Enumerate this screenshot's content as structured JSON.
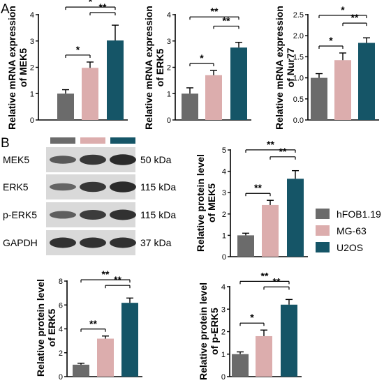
{
  "figure": {
    "panel_labels": [
      "A",
      "B"
    ],
    "legend": {
      "position": "right",
      "entries": [
        {
          "label": "hFOB1.19",
          "color": "#6b6b6b"
        },
        {
          "label": "MG-63",
          "color": "#dcadad"
        },
        {
          "label": "U2OS",
          "color": "#155567"
        }
      ]
    },
    "western_blot": {
      "group_colors": [
        "#6b6b6b",
        "#dcadad",
        "#155567"
      ],
      "rows": [
        {
          "protein": "MEK5",
          "mw": "50 kDa",
          "intensity": [
            0.55,
            0.85,
            0.95
          ]
        },
        {
          "protein": "ERK5",
          "mw": "115 kDa",
          "intensity": [
            0.45,
            0.85,
            0.95
          ]
        },
        {
          "protein": "p-ERK5",
          "mw": "115 kDa",
          "intensity": [
            0.5,
            0.8,
            0.9
          ]
        },
        {
          "protein": "GAPDH",
          "mw": "37 kDa",
          "intensity": [
            0.9,
            0.9,
            0.9
          ]
        }
      ]
    }
  },
  "chart_data": [
    {
      "type": "bar",
      "ylabel": [
        "Relative mRNA expression",
        "of MEK5"
      ],
      "categories": [
        "hFOB1.19",
        "MG-63",
        "U2OS"
      ],
      "values": [
        1.0,
        1.98,
        3.02
      ],
      "errors": [
        0.15,
        0.22,
        0.58
      ],
      "ylim": [
        0,
        4
      ],
      "yticks": [
        "0",
        "1",
        "2",
        "3",
        "4"
      ],
      "significance": [
        {
          "pair": [
            1,
            0
          ],
          "label": "*"
        },
        {
          "pair": [
            2,
            1
          ],
          "label": "**"
        },
        {
          "pair": [
            2,
            0
          ],
          "label": "*"
        }
      ]
    },
    {
      "type": "bar",
      "ylabel": [
        "Relative mRNA expression",
        "of ERK5"
      ],
      "categories": [
        "hFOB1.19",
        "MG-63",
        "U2OS"
      ],
      "values": [
        1.0,
        1.7,
        2.75
      ],
      "errors": [
        0.22,
        0.18,
        0.2
      ],
      "ylim": [
        0,
        4
      ],
      "yticks": [
        "0",
        "1",
        "2",
        "3",
        "4"
      ],
      "significance": [
        {
          "pair": [
            1,
            0
          ],
          "label": "*"
        },
        {
          "pair": [
            2,
            1
          ],
          "label": "**"
        },
        {
          "pair": [
            2,
            0
          ],
          "label": "**"
        }
      ]
    },
    {
      "type": "bar",
      "ylabel": [
        "Relative mRNA expression",
        "of Nur77"
      ],
      "categories": [
        "hFOB1.19",
        "MG-63",
        "U2OS"
      ],
      "values": [
        1.0,
        1.42,
        1.83
      ],
      "errors": [
        0.1,
        0.17,
        0.12
      ],
      "ylim": [
        0,
        2.5
      ],
      "yticks": [
        "0.0",
        "0.5",
        "1.0",
        "1.5",
        "2.0",
        "2.5"
      ],
      "significance": [
        {
          "pair": [
            1,
            0
          ],
          "label": "*"
        },
        {
          "pair": [
            2,
            1
          ],
          "label": "**"
        },
        {
          "pair": [
            2,
            0
          ],
          "label": "*"
        }
      ]
    },
    {
      "type": "bar",
      "ylabel": [
        "Relative protein level",
        "of MEK5"
      ],
      "categories": [
        "hFOB1.19",
        "MG-63",
        "U2OS"
      ],
      "values": [
        1.0,
        2.42,
        3.65
      ],
      "errors": [
        0.1,
        0.22,
        0.38
      ],
      "ylim": [
        0,
        5
      ],
      "yticks": [
        "0",
        "1",
        "2",
        "3",
        "4",
        "5"
      ],
      "significance": [
        {
          "pair": [
            1,
            0
          ],
          "label": "**"
        },
        {
          "pair": [
            2,
            1
          ],
          "label": "**"
        },
        {
          "pair": [
            2,
            0
          ],
          "label": "**"
        }
      ]
    },
    {
      "type": "bar",
      "ylabel": [
        "Relative protein level",
        "of ERK5"
      ],
      "categories": [
        "hFOB1.19",
        "MG-63",
        "U2OS"
      ],
      "values": [
        1.0,
        3.18,
        6.18
      ],
      "errors": [
        0.12,
        0.22,
        0.4
      ],
      "ylim": [
        0,
        8
      ],
      "yticks": [
        "0",
        "2",
        "4",
        "6",
        "8"
      ],
      "significance": [
        {
          "pair": [
            1,
            0
          ],
          "label": "**"
        },
        {
          "pair": [
            2,
            1
          ],
          "label": "**"
        },
        {
          "pair": [
            2,
            0
          ],
          "label": "**"
        }
      ]
    },
    {
      "type": "bar",
      "ylabel": [
        "Relative protein level",
        "of p-ERK5"
      ],
      "categories": [
        "hFOB1.19",
        "MG-63",
        "U2OS"
      ],
      "values": [
        1.0,
        1.8,
        3.2
      ],
      "errors": [
        0.1,
        0.27,
        0.23
      ],
      "ylim": [
        0,
        4
      ],
      "yticks": [
        "0",
        "1",
        "2",
        "3",
        "4"
      ],
      "significance": [
        {
          "pair": [
            1,
            0
          ],
          "label": "*"
        },
        {
          "pair": [
            2,
            1
          ],
          "label": "**"
        },
        {
          "pair": [
            2,
            0
          ],
          "label": "**"
        }
      ]
    }
  ]
}
